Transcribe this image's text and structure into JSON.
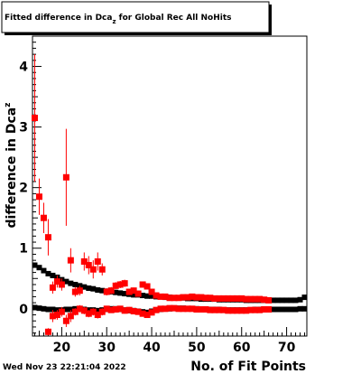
{
  "chart_data": {
    "type": "scatter",
    "title": "Fitted difference in Dca",
    "title_sub": "z",
    "title_rest": " for Global Rec All NoHits",
    "xlabel": "No. of Fit Points",
    "ylabel": "difference in Dca",
    "ylabel_sub": "z",
    "xlim": [
      13.5,
      74.5
    ],
    "ylim": [
      -0.45,
      4.5
    ],
    "x_ticks": [
      20,
      30,
      40,
      50,
      60,
      70
    ],
    "y_ticks": [
      0,
      1,
      2,
      3,
      4
    ],
    "grid": false,
    "legend": "none",
    "footer_date": "Wed Nov 23 22:21:04 2022",
    "colors": {
      "black_series": "#000000",
      "red_series": "#ff0000"
    },
    "series": [
      {
        "color": "#000000",
        "points": [
          [
            14,
            0.72
          ],
          [
            15,
            0.68
          ],
          [
            16,
            0.63
          ],
          [
            17,
            0.58
          ],
          [
            18,
            0.55
          ],
          [
            19,
            0.52
          ],
          [
            20,
            0.48
          ],
          [
            21,
            0.45
          ],
          [
            22,
            0.42
          ],
          [
            23,
            0.4
          ],
          [
            24,
            0.38
          ],
          [
            25,
            0.36
          ],
          [
            26,
            0.34
          ],
          [
            27,
            0.33
          ],
          [
            28,
            0.31
          ],
          [
            29,
            0.3
          ],
          [
            30,
            0.29
          ],
          [
            31,
            0.28
          ],
          [
            32,
            0.27
          ],
          [
            33,
            0.26
          ],
          [
            34,
            0.25
          ],
          [
            35,
            0.24
          ],
          [
            36,
            0.23
          ],
          [
            37,
            0.23
          ],
          [
            38,
            0.22
          ],
          [
            39,
            0.21
          ],
          [
            40,
            0.21
          ],
          [
            41,
            0.2
          ],
          [
            42,
            0.2
          ],
          [
            43,
            0.19
          ],
          [
            44,
            0.19
          ],
          [
            45,
            0.18
          ],
          [
            46,
            0.18
          ],
          [
            47,
            0.18
          ],
          [
            48,
            0.17
          ],
          [
            49,
            0.17
          ],
          [
            50,
            0.17
          ],
          [
            51,
            0.16
          ],
          [
            52,
            0.16
          ],
          [
            53,
            0.16
          ],
          [
            54,
            0.16
          ],
          [
            55,
            0.15
          ],
          [
            56,
            0.15
          ],
          [
            57,
            0.15
          ],
          [
            58,
            0.15
          ],
          [
            59,
            0.15
          ],
          [
            60,
            0.15
          ],
          [
            61,
            0.14
          ],
          [
            62,
            0.14
          ],
          [
            63,
            0.14
          ],
          [
            64,
            0.14
          ],
          [
            65,
            0.14
          ],
          [
            66,
            0.14
          ],
          [
            67,
            0.14
          ],
          [
            68,
            0.14
          ],
          [
            69,
            0.14
          ],
          [
            70,
            0.14
          ],
          [
            71,
            0.14
          ],
          [
            72,
            0.14
          ],
          [
            73,
            0.15
          ],
          [
            74,
            0.19
          ]
        ]
      },
      {
        "color": "#000000",
        "points": [
          [
            14,
            0.02
          ],
          [
            15,
            0.01
          ],
          [
            16,
            0.0
          ],
          [
            17,
            -0.01
          ],
          [
            18,
            -0.01
          ],
          [
            19,
            -0.02
          ],
          [
            20,
            -0.02
          ],
          [
            21,
            -0.01
          ],
          [
            22,
            -0.01
          ],
          [
            23,
            0.0
          ],
          [
            24,
            0.0
          ],
          [
            25,
            -0.01
          ],
          [
            26,
            -0.02
          ],
          [
            27,
            -0.02
          ],
          [
            28,
            -0.03
          ],
          [
            29,
            -0.02
          ],
          [
            30,
            -0.01
          ],
          [
            31,
            0.0
          ],
          [
            32,
            0.0
          ],
          [
            33,
            -0.01
          ],
          [
            34,
            -0.02
          ],
          [
            35,
            -0.03
          ],
          [
            36,
            -0.03
          ],
          [
            37,
            -0.04
          ],
          [
            38,
            -0.05
          ],
          [
            39,
            -0.06
          ],
          [
            40,
            -0.04
          ],
          [
            41,
            -0.02
          ],
          [
            42,
            -0.01
          ],
          [
            43,
            0.0
          ],
          [
            44,
            0.0
          ],
          [
            45,
            0.01
          ],
          [
            46,
            0.01
          ],
          [
            47,
            0.01
          ],
          [
            48,
            0.0
          ],
          [
            49,
            0.0
          ],
          [
            50,
            0.0
          ],
          [
            51,
            -0.01
          ],
          [
            52,
            -0.01
          ],
          [
            53,
            -0.01
          ],
          [
            54,
            -0.01
          ],
          [
            55,
            -0.01
          ],
          [
            56,
            -0.02
          ],
          [
            57,
            -0.02
          ],
          [
            58,
            -0.02
          ],
          [
            59,
            -0.02
          ],
          [
            60,
            -0.02
          ],
          [
            61,
            -0.02
          ],
          [
            62,
            -0.02
          ],
          [
            63,
            -0.01
          ],
          [
            64,
            -0.01
          ],
          [
            65,
            -0.01
          ],
          [
            66,
            -0.01
          ],
          [
            67,
            -0.01
          ],
          [
            68,
            -0.01
          ],
          [
            69,
            -0.01
          ],
          [
            70,
            -0.01
          ],
          [
            71,
            -0.01
          ],
          [
            72,
            -0.01
          ],
          [
            73,
            0.0
          ],
          [
            74,
            0.0
          ]
        ]
      },
      {
        "color": "#ff0000",
        "points": [
          [
            14,
            3.15,
            1.05
          ],
          [
            15,
            1.85,
            0.3
          ],
          [
            16,
            1.5,
            0.25
          ],
          [
            17,
            1.18,
            0.3
          ],
          [
            18,
            0.35,
            0.1
          ],
          [
            19,
            0.45,
            0.1
          ],
          [
            20,
            0.4,
            0.1
          ],
          [
            21,
            2.17,
            0.8
          ],
          [
            22,
            0.8,
            0.2
          ],
          [
            23,
            0.28,
            0.08
          ],
          [
            24,
            0.3,
            0.08
          ],
          [
            25,
            0.78,
            0.15
          ],
          [
            26,
            0.72,
            0.15
          ],
          [
            27,
            0.65,
            0.15
          ],
          [
            28,
            0.78,
            0.15
          ],
          [
            29,
            0.65,
            0.1
          ],
          [
            30,
            0.28,
            0.06
          ],
          [
            31,
            0.3,
            0.06
          ],
          [
            32,
            0.38,
            0.06
          ],
          [
            33,
            0.4,
            0.06
          ],
          [
            34,
            0.42,
            0.06
          ],
          [
            35,
            0.28,
            0.05
          ],
          [
            36,
            0.3,
            0.05
          ],
          [
            37,
            0.25,
            0.05
          ],
          [
            38,
            0.4,
            0.05
          ],
          [
            39,
            0.37,
            0.05
          ],
          [
            40,
            0.28,
            0.05
          ],
          [
            41,
            0.22,
            0.04
          ],
          [
            42,
            0.2,
            0.04
          ],
          [
            43,
            0.2,
            0.04
          ],
          [
            44,
            0.18,
            0.04
          ],
          [
            45,
            0.18,
            0.04
          ],
          [
            46,
            0.18,
            0.04
          ],
          [
            47,
            0.19,
            0.04
          ],
          [
            48,
            0.19,
            0.04
          ],
          [
            49,
            0.2,
            0.04
          ],
          [
            50,
            0.19,
            0.04
          ],
          [
            51,
            0.19,
            0.04
          ],
          [
            52,
            0.18,
            0.04
          ],
          [
            53,
            0.18,
            0.04
          ],
          [
            54,
            0.17,
            0.04
          ],
          [
            55,
            0.17,
            0.04
          ],
          [
            56,
            0.17,
            0.04
          ],
          [
            57,
            0.17,
            0.04
          ],
          [
            58,
            0.17,
            0.04
          ],
          [
            59,
            0.17,
            0.04
          ],
          [
            60,
            0.17,
            0.04
          ],
          [
            61,
            0.16,
            0.04
          ],
          [
            62,
            0.16,
            0.04
          ],
          [
            63,
            0.16,
            0.04
          ],
          [
            64,
            0.16,
            0.04
          ],
          [
            65,
            0.15,
            0.04
          ],
          [
            66,
            0.14,
            0.04
          ]
        ]
      },
      {
        "color": "#ff0000",
        "points": [
          [
            17,
            -0.38,
            0.06
          ],
          [
            18,
            -0.12,
            0.1
          ],
          [
            19,
            -0.1,
            0.08
          ],
          [
            20,
            -0.05,
            0.08
          ],
          [
            21,
            -0.2,
            0.1
          ],
          [
            22,
            -0.12,
            0.1
          ],
          [
            23,
            -0.05,
            0.06
          ],
          [
            24,
            0.0,
            0.06
          ],
          [
            25,
            -0.03,
            0.06
          ],
          [
            26,
            -0.08,
            0.06
          ],
          [
            27,
            -0.05,
            0.06
          ],
          [
            28,
            -0.1,
            0.06
          ],
          [
            29,
            -0.05,
            0.06
          ],
          [
            30,
            0.0,
            0.05
          ],
          [
            31,
            -0.02,
            0.05
          ],
          [
            32,
            -0.01,
            0.05
          ],
          [
            33,
            0.0,
            0.05
          ],
          [
            34,
            -0.03,
            0.05
          ],
          [
            35,
            -0.02,
            0.05
          ],
          [
            36,
            -0.04,
            0.05
          ],
          [
            37,
            -0.05,
            0.05
          ],
          [
            38,
            -0.08,
            0.05
          ],
          [
            39,
            -0.1,
            0.05
          ],
          [
            40,
            -0.06,
            0.05
          ],
          [
            41,
            -0.02,
            0.04
          ],
          [
            42,
            0.0,
            0.04
          ],
          [
            43,
            0.0,
            0.04
          ],
          [
            44,
            0.01,
            0.04
          ],
          [
            45,
            0.01,
            0.04
          ],
          [
            46,
            0.0,
            0.04
          ],
          [
            47,
            0.0,
            0.04
          ],
          [
            48,
            0.0,
            0.04
          ],
          [
            49,
            0.0,
            0.04
          ],
          [
            50,
            -0.01,
            0.04
          ],
          [
            51,
            -0.01,
            0.04
          ],
          [
            52,
            -0.01,
            0.04
          ],
          [
            53,
            -0.02,
            0.04
          ],
          [
            54,
            -0.02,
            0.04
          ],
          [
            55,
            -0.02,
            0.04
          ],
          [
            56,
            -0.02,
            0.04
          ],
          [
            57,
            -0.03,
            0.04
          ],
          [
            58,
            -0.03,
            0.04
          ],
          [
            59,
            -0.03,
            0.04
          ],
          [
            60,
            -0.03,
            0.04
          ],
          [
            61,
            -0.03,
            0.04
          ],
          [
            62,
            -0.02,
            0.04
          ],
          [
            63,
            -0.02,
            0.04
          ],
          [
            64,
            -0.02,
            0.04
          ],
          [
            65,
            -0.01,
            0.04
          ],
          [
            66,
            -0.01,
            0.04
          ]
        ]
      }
    ]
  }
}
